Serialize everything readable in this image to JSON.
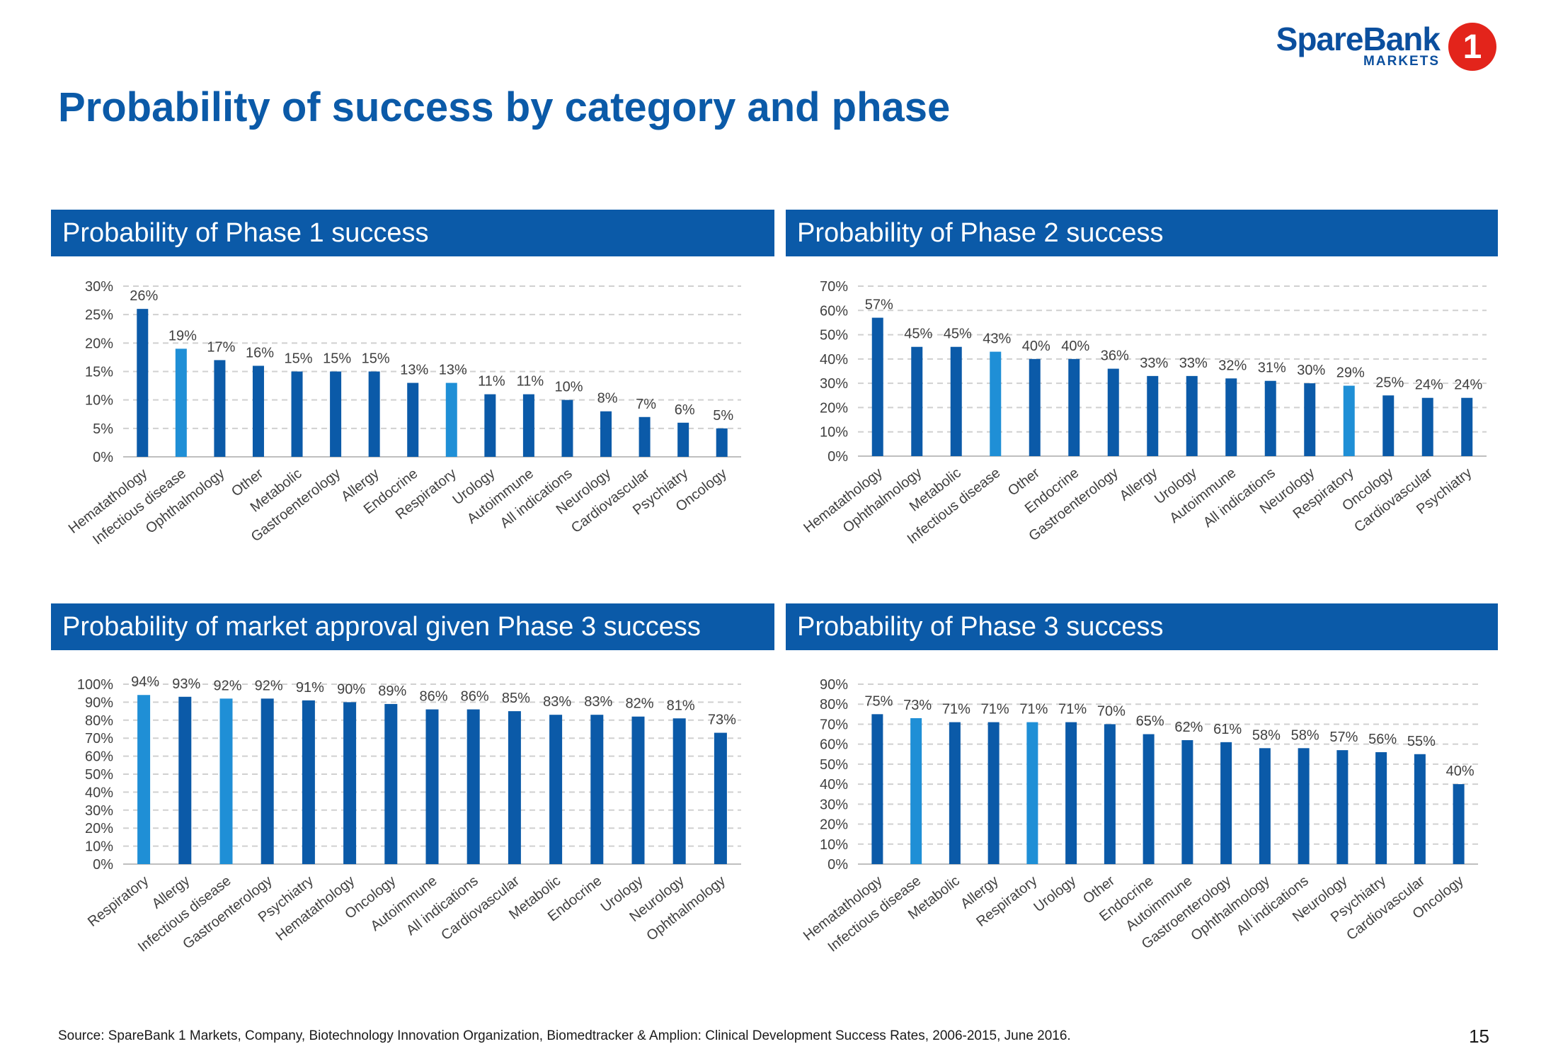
{
  "page": {
    "title": "Probability of success by category and phase",
    "logo_name": "SpareBank",
    "logo_sub": "MARKETS",
    "logo_mark": "1",
    "footer": "Source: SpareBank 1 Markets, Company, Biotechnology Innovation Organization, Biomedtracker & Amplion: Clinical Development Success Rates, 2006-2015, June 2016.",
    "page_number": "15"
  },
  "colors": {
    "title": "#0b5aa8",
    "header_bar": "#0b5aa8",
    "bar": "#0b5aa8",
    "bar_highlight": "#1f8fd6",
    "logo_red": "#e3241b"
  },
  "chart_data": [
    {
      "type": "bar",
      "title": "Probability of Phase 1 success",
      "categories": [
        "Hematathology",
        "Infectious disease",
        "Ophthalmology",
        "Other",
        "Metabolic",
        "Gastroenterology",
        "Allergy",
        "Endocrine",
        "Respiratory",
        "Urology",
        "Autoimmune",
        "All indications",
        "Neurology",
        "Cardiovascular",
        "Psychiatry",
        "Oncology"
      ],
      "values": [
        26,
        19,
        17,
        16,
        15,
        15,
        15,
        13,
        13,
        11,
        11,
        10,
        8,
        7,
        6,
        5
      ],
      "data_labels": [
        "26%",
        "19%",
        "17%",
        "16%",
        "15%",
        "15%",
        "15%",
        "13%",
        "13%",
        "11%",
        "11%",
        "10%",
        "8%",
        "7%",
        "6%",
        "5%"
      ],
      "highlight": [
        "Infectious disease",
        "Respiratory"
      ],
      "ylim": [
        0,
        30
      ],
      "yticks": [
        "0%",
        "5%",
        "10%",
        "15%",
        "20%",
        "25%",
        "30%"
      ],
      "grid": true
    },
    {
      "type": "bar",
      "title": "Probability of Phase 2 success",
      "categories": [
        "Hematathology",
        "Ophthalmology",
        "Metabolic",
        "Infectious disease",
        "Other",
        "Endocrine",
        "Gastroenterology",
        "Allergy",
        "Urology",
        "Autoimmune",
        "All indications",
        "Neurology",
        "Respiratory",
        "Oncology",
        "Cardiovascular",
        "Psychiatry"
      ],
      "values": [
        57,
        45,
        45,
        43,
        40,
        40,
        36,
        33,
        33,
        32,
        31,
        30,
        29,
        25,
        24,
        24
      ],
      "data_labels": [
        "57%",
        "45%",
        "45%",
        "43%",
        "40%",
        "40%",
        "36%",
        "33%",
        "33%",
        "32%",
        "31%",
        "30%",
        "29%",
        "25%",
        "24%",
        "24%"
      ],
      "highlight": [
        "Infectious disease",
        "Respiratory"
      ],
      "ylim": [
        0,
        70
      ],
      "yticks": [
        "0%",
        "10%",
        "20%",
        "30%",
        "40%",
        "50%",
        "60%",
        "70%"
      ],
      "grid": true
    },
    {
      "type": "bar",
      "title": "Probability of market approval given Phase 3 success",
      "categories": [
        "Respiratory",
        "Allergy",
        "Infectious disease",
        "Gastroenterology",
        "Psychiatry",
        "Hematathology",
        "Oncology",
        "Autoimmune",
        "All indications",
        "Cardiovascular",
        "Metabolic",
        "Endocrine",
        "Urology",
        "Neurology",
        "Ophthalmology"
      ],
      "values": [
        94,
        93,
        92,
        92,
        91,
        90,
        89,
        86,
        86,
        85,
        83,
        83,
        82,
        81,
        73
      ],
      "data_labels": [
        "94%",
        "93%",
        "92%",
        "92%",
        "91%",
        "90%",
        "89%",
        "86%",
        "86%",
        "85%",
        "83%",
        "83%",
        "82%",
        "81%",
        "73%"
      ],
      "highlight": [
        "Respiratory",
        "Infectious disease"
      ],
      "ylim": [
        0,
        100
      ],
      "yticks": [
        "0%",
        "10%",
        "20%",
        "30%",
        "40%",
        "50%",
        "60%",
        "70%",
        "80%",
        "90%",
        "100%"
      ],
      "grid": true
    },
    {
      "type": "bar",
      "title": "Probability of Phase 3 success",
      "categories": [
        "Hematathology",
        "Infectious disease",
        "Metabolic",
        "Allergy",
        "Respiratory",
        "Urology",
        "Other",
        "Endocrine",
        "Autoimmune",
        "Gastroenterology",
        "Ophthalmology",
        "All indications",
        "Neurology",
        "Psychiatry",
        "Cardiovascular",
        "Oncology"
      ],
      "values": [
        75,
        73,
        71,
        71,
        71,
        71,
        70,
        65,
        62,
        61,
        58,
        58,
        57,
        56,
        55,
        40
      ],
      "data_labels": [
        "75%",
        "73%",
        "71%",
        "71%",
        "71%",
        "71%",
        "70%",
        "65%",
        "62%",
        "61%",
        "58%",
        "58%",
        "57%",
        "56%",
        "55%",
        "40%"
      ],
      "highlight": [
        "Infectious disease",
        "Respiratory"
      ],
      "ylim": [
        0,
        90
      ],
      "yticks": [
        "0%",
        "10%",
        "20%",
        "30%",
        "40%",
        "50%",
        "60%",
        "70%",
        "80%",
        "90%"
      ],
      "grid": true
    }
  ]
}
